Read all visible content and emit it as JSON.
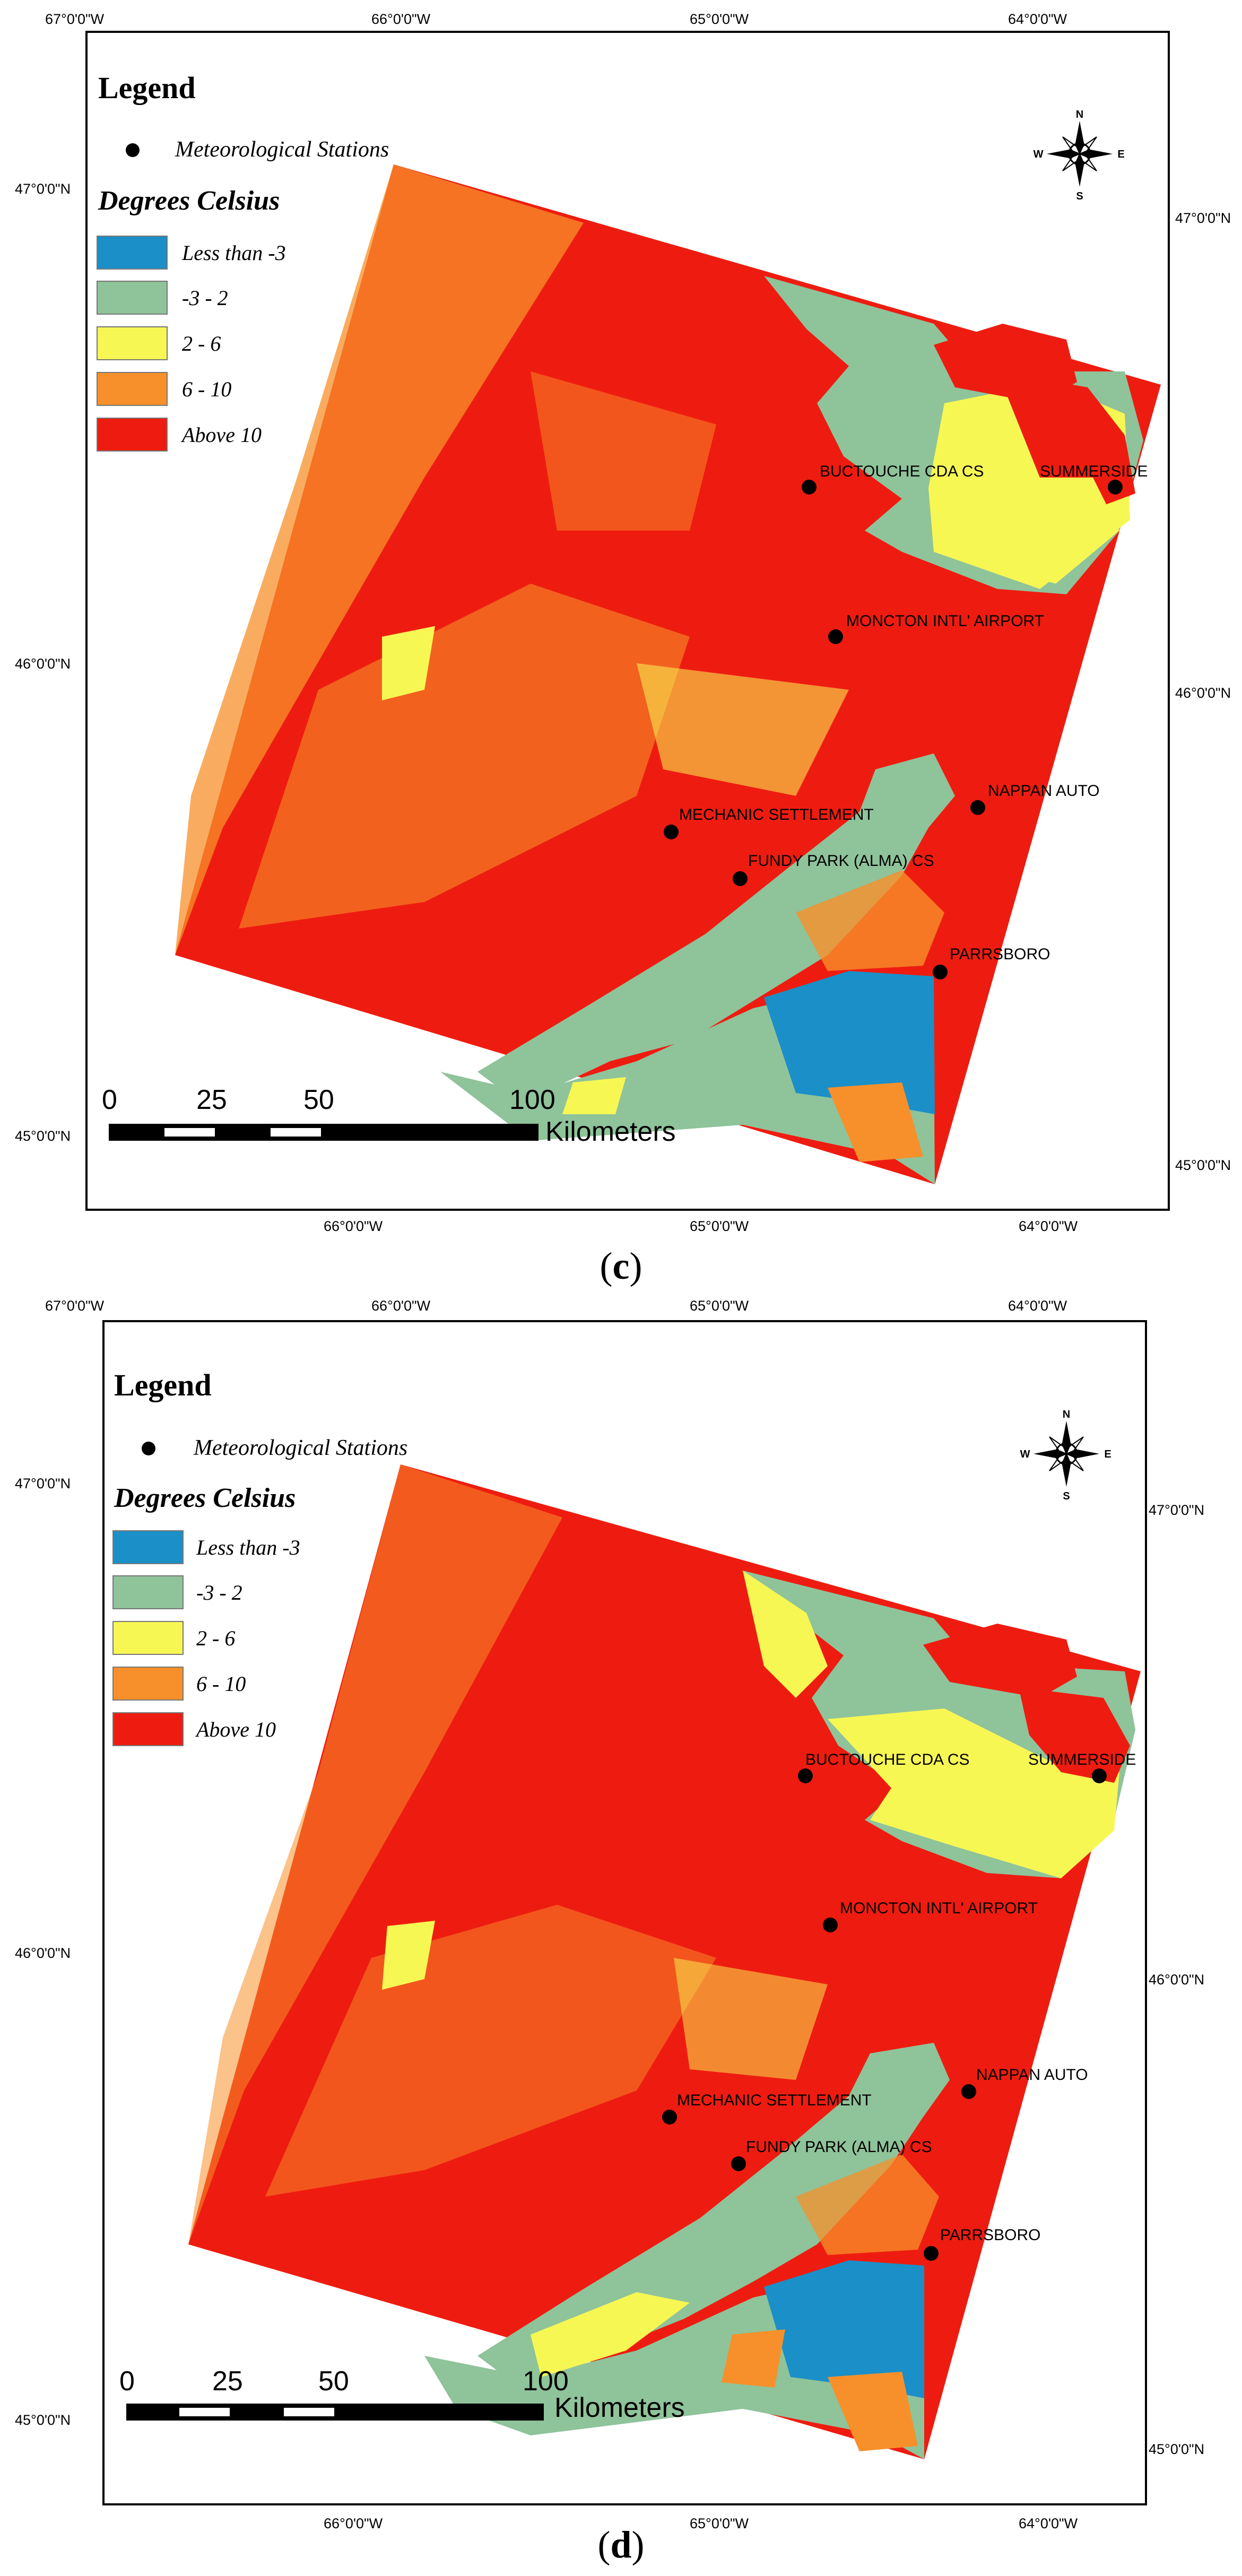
{
  "maps": [
    {
      "id": "c",
      "caption_open": "(",
      "caption_letter": "c",
      "caption_close": ")",
      "top_axis": [
        "67°0'0\"W",
        "66°0'0\"W",
        "65°0'0\"W",
        "64°0'0\"W"
      ],
      "bottom_axis": [
        "66°0'0\"W",
        "65°0'0\"W",
        "64°0'0\"W"
      ],
      "left_axis": [
        "47°0'0\"N",
        "46°0'0\"N",
        "45°0'0\"N"
      ],
      "right_axis": [
        "47°0'0\"N",
        "46°0'0\"N",
        "45°0'0\"N"
      ],
      "stations": [
        {
          "name": "BUCTOUCHE CDA CS"
        },
        {
          "name": "SUMMERSIDE"
        },
        {
          "name": "MONCTON INTL' AIRPORT"
        },
        {
          "name": "NAPPAN AUTO"
        },
        {
          "name": "MECHANIC SETTLEMENT"
        },
        {
          "name": "FUNDY PARK (ALMA) CS"
        },
        {
          "name": "PARRSBORO"
        }
      ]
    },
    {
      "id": "d",
      "caption_open": "(",
      "caption_letter": "d",
      "caption_close": ")",
      "top_axis": [
        "67°0'0\"W",
        "66°0'0\"W",
        "65°0'0\"W",
        "64°0'0\"W"
      ],
      "bottom_axis": [
        "66°0'0\"W",
        "65°0'0\"W",
        "64°0'0\"W"
      ],
      "left_axis": [
        "47°0'0\"N",
        "46°0'0\"N",
        "45°0'0\"N"
      ],
      "right_axis": [
        "47°0'0\"N",
        "46°0'0\"N",
        "45°0'0\"N"
      ],
      "stations": [
        {
          "name": "BUCTOUCHE CDA CS"
        },
        {
          "name": "SUMMERSIDE"
        },
        {
          "name": "MONCTON INTL' AIRPORT"
        },
        {
          "name": "NAPPAN AUTO"
        },
        {
          "name": "MECHANIC SETTLEMENT"
        },
        {
          "name": "FUNDY PARK (ALMA) CS"
        },
        {
          "name": "PARRSBORO"
        }
      ]
    }
  ],
  "legend": {
    "title": "Legend",
    "stations_label": "Meteorological Stations",
    "units_title": "Degrees Celsius",
    "classes": [
      {
        "label": "Less than -3",
        "color": "#1a8fc8"
      },
      {
        "label": "-3 - 2",
        "color": "#8fc39a"
      },
      {
        "label": "2 - 6",
        "color": "#f7f754"
      },
      {
        "label": "6 - 10",
        "color": "#f7902a"
      },
      {
        "label": "Above 10",
        "color": "#ee1c10"
      }
    ]
  },
  "scalebar": {
    "ticks": [
      "0",
      "25",
      "50",
      "100"
    ],
    "unit": "Kilometers"
  },
  "north_arrow": {
    "N": "N",
    "S": "S",
    "E": "E",
    "W": "W"
  }
}
